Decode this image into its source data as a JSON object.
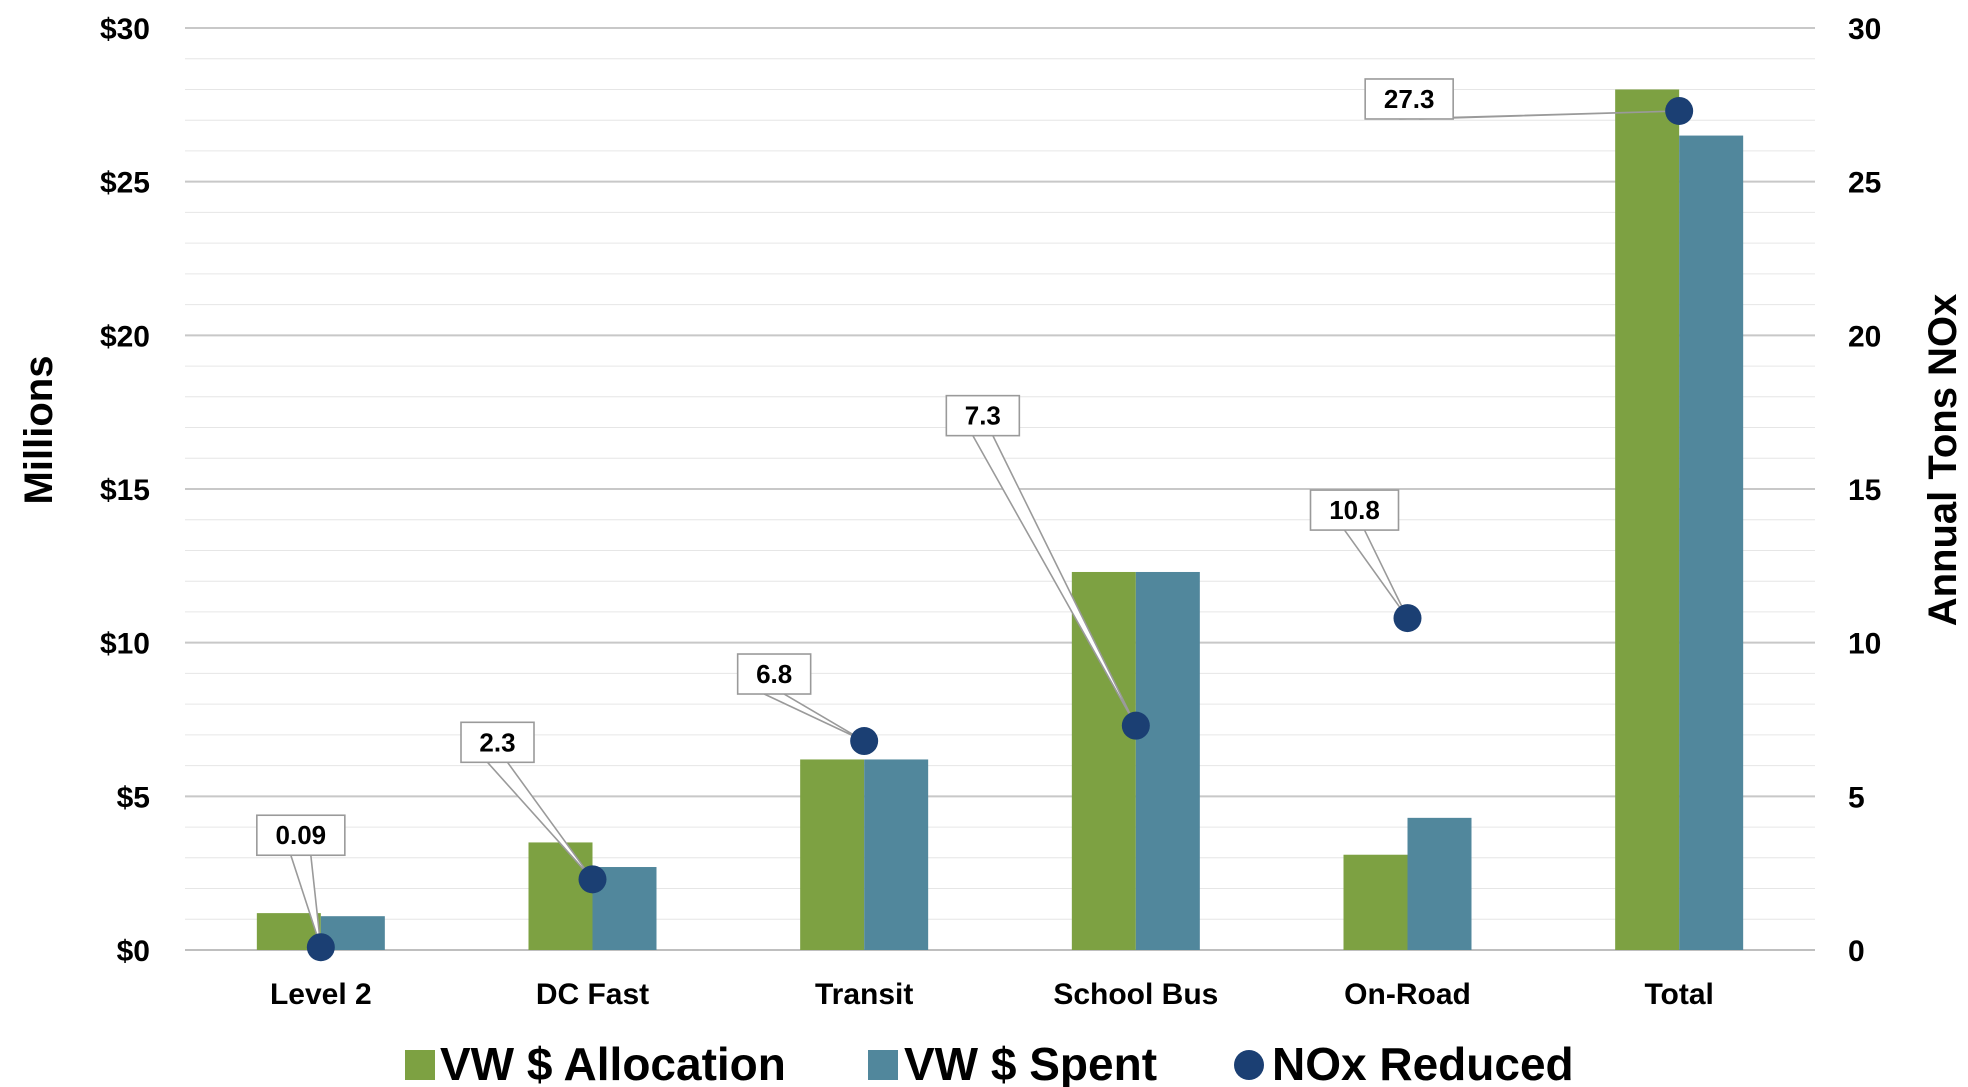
{
  "chart_data": {
    "type": "bar",
    "categories": [
      "Level 2",
      "DC Fast",
      "Transit",
      "School Bus",
      "On-Road",
      "Total"
    ],
    "series": [
      {
        "name": "VW $ Allocation",
        "kind": "bar",
        "axis": "left",
        "color": "#7da142",
        "values": [
          1.2,
          3.5,
          6.2,
          12.3,
          3.1,
          28.0
        ]
      },
      {
        "name": "VW $ Spent",
        "kind": "bar",
        "axis": "left",
        "color": "#51879c",
        "values": [
          1.1,
          2.7,
          6.2,
          12.3,
          4.3,
          26.5
        ]
      },
      {
        "name": "NOx Reduced",
        "kind": "point",
        "axis": "right",
        "color": "#1b3f73",
        "values": [
          0.09,
          2.3,
          6.8,
          7.3,
          10.8,
          27.3
        ],
        "labels": [
          "0.09",
          "2.3",
          "6.8",
          "7.3",
          "10.8",
          "27.3"
        ]
      }
    ],
    "ylabel": "Millions",
    "y2label": "Annual Tons NOx",
    "ylim": [
      0,
      30
    ],
    "y2lim": [
      0,
      30
    ],
    "yticks": [
      "$0",
      "$5",
      "$10",
      "$15",
      "$20",
      "$25",
      "$30"
    ],
    "y2ticks": [
      "0",
      "5",
      "10",
      "15",
      "20",
      "25",
      "30"
    ],
    "grid": true,
    "legend_position": "bottom"
  }
}
